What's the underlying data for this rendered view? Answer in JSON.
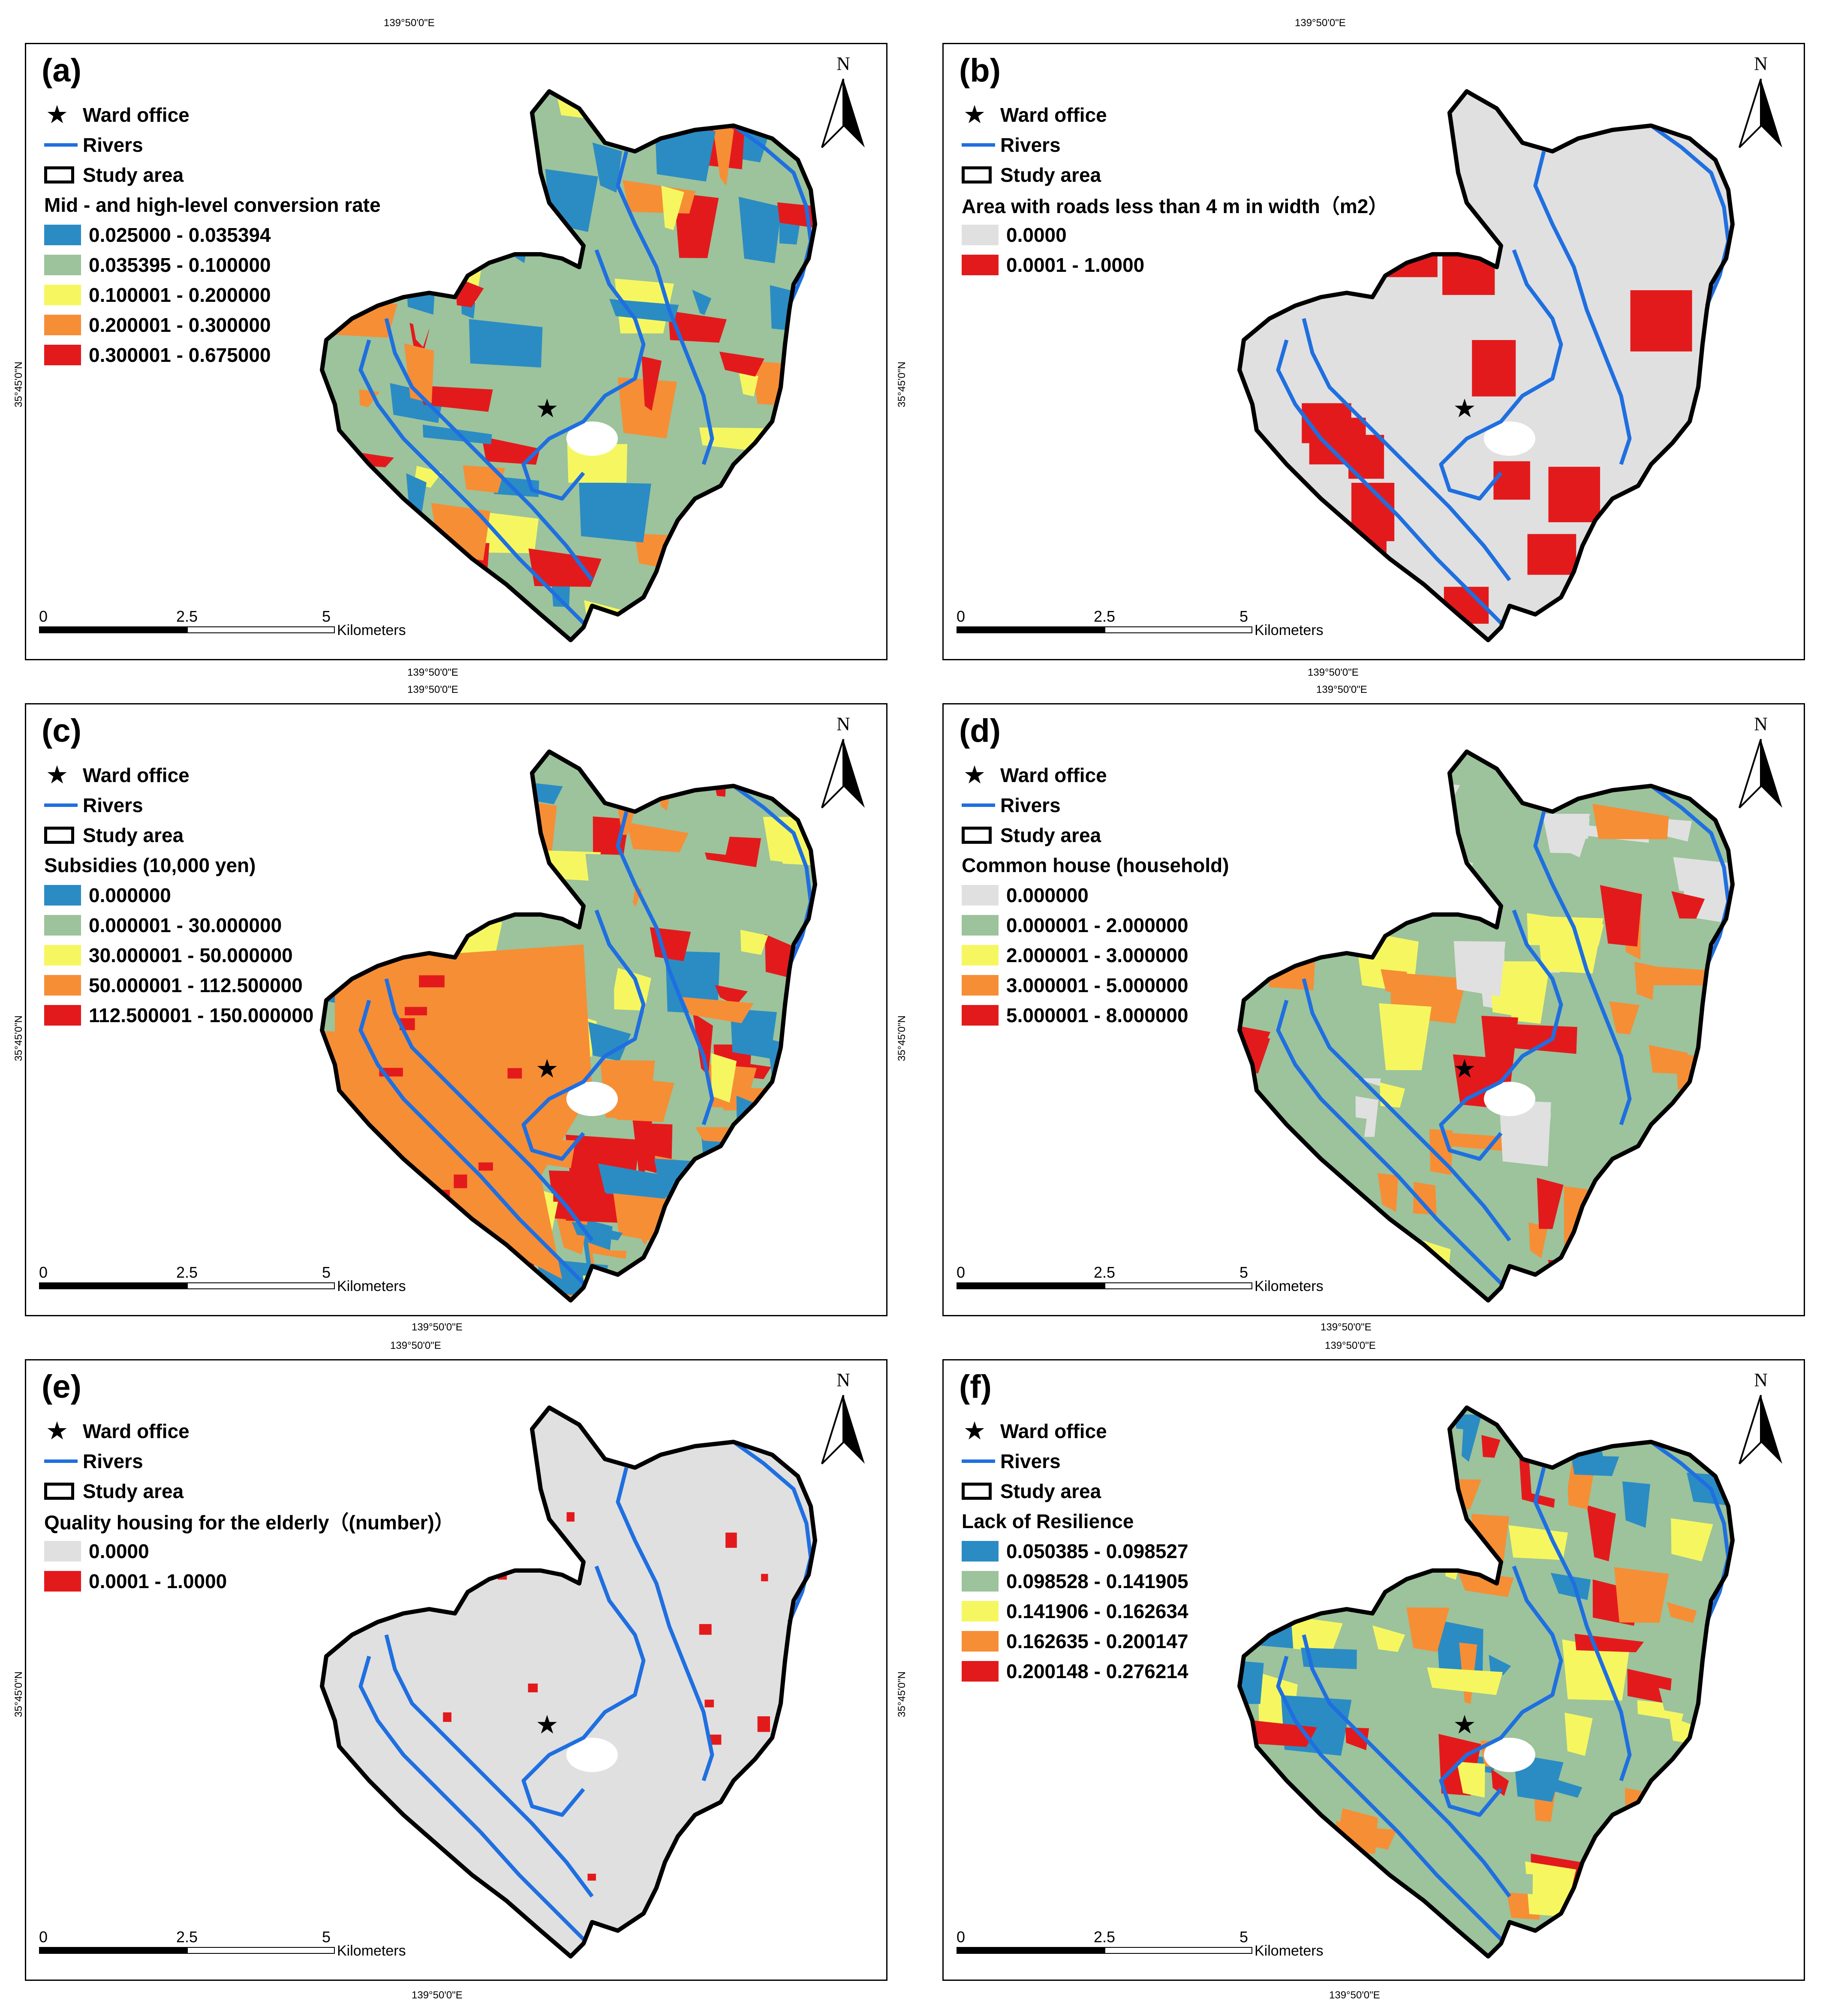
{
  "coords": {
    "lon": "139°50'0\"E",
    "lat": "35°45'0\"N"
  },
  "north_letter": "N",
  "scalebar": {
    "t0": "0",
    "t1": "2.5",
    "t2": "5",
    "unit": "Kilometers"
  },
  "common_legend": {
    "ward_office": "Ward office",
    "rivers": "Rivers",
    "study_area": "Study area"
  },
  "colors": {
    "river": "#1f6fe0",
    "boundary": "#000000",
    "red": "#e31a1c",
    "gray": "#e0e0e0"
  },
  "panels": [
    {
      "label": "(a)",
      "title": "Mid - and high-level conversion rate",
      "classes": [
        {
          "range": "0.025000 - 0.035394",
          "color": "#2b8cc4"
        },
        {
          "range": "0.035395 - 0.100000",
          "color": "#9cc39b"
        },
        {
          "range": "0.100001 - 0.200000",
          "color": "#f6f760"
        },
        {
          "range": "0.200001 - 0.300000",
          "color": "#f68e36"
        },
        {
          "range": "0.300001 - 0.675000",
          "color": "#e31a1c"
        }
      ]
    },
    {
      "label": "(b)",
      "title": "Area with roads less than 4 m in width（m2）",
      "classes": [
        {
          "range": "0.0000",
          "color": "#e0e0e0"
        },
        {
          "range": "0.0001 - 1.0000",
          "color": "#e31a1c"
        }
      ]
    },
    {
      "label": "(c)",
      "title": "Subsidies (10,000 yen)",
      "classes": [
        {
          "range": "0.000000",
          "color": "#2b8cc4"
        },
        {
          "range": "0.000001 - 30.000000",
          "color": "#9cc39b"
        },
        {
          "range": "30.000001 - 50.000000",
          "color": "#f6f760"
        },
        {
          "range": "50.000001 - 112.500000",
          "color": "#f68e36"
        },
        {
          "range": "112.500001 - 150.000000",
          "color": "#e31a1c"
        }
      ]
    },
    {
      "label": "(d)",
      "title": "Common house (household)",
      "classes": [
        {
          "range": "0.000000",
          "color": "#e0e0e0"
        },
        {
          "range": "0.000001 - 2.000000",
          "color": "#9cc39b"
        },
        {
          "range": "2.000001 - 3.000000",
          "color": "#f6f760"
        },
        {
          "range": "3.000001 - 5.000000",
          "color": "#f68e36"
        },
        {
          "range": "5.000001 - 8.000000",
          "color": "#e31a1c"
        }
      ]
    },
    {
      "label": "(e)",
      "title": "Quality housing for the elderly（(number)）",
      "classes": [
        {
          "range": "0.0000",
          "color": "#e0e0e0"
        },
        {
          "range": "0.0001 - 1.0000",
          "color": "#e31a1c"
        }
      ]
    },
    {
      "label": "(f)",
      "title": "Lack of Resilience",
      "classes": [
        {
          "range": "0.050385 - 0.098527",
          "color": "#2b8cc4"
        },
        {
          "range": "0.098528 - 0.141905",
          "color": "#9cc39b"
        },
        {
          "range": "0.141906 - 0.162634",
          "color": "#f6f760"
        },
        {
          "range": "0.162635 - 0.200147",
          "color": "#f68e36"
        },
        {
          "range": "0.200148 - 0.276214",
          "color": "#e31a1c"
        }
      ]
    }
  ]
}
